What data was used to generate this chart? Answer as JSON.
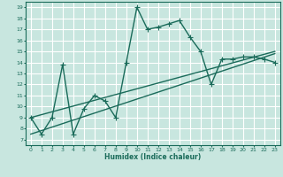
{
  "xlabel": "Humidex (Indice chaleur)",
  "bg_color": "#c8e6df",
  "grid_color": "#ffffff",
  "line_color": "#1a6b5a",
  "xlim": [
    -0.5,
    23.5
  ],
  "ylim": [
    6.5,
    19.5
  ],
  "xticks": [
    0,
    1,
    2,
    3,
    4,
    5,
    6,
    7,
    8,
    9,
    10,
    11,
    12,
    13,
    14,
    15,
    16,
    17,
    18,
    19,
    20,
    21,
    22,
    23
  ],
  "yticks": [
    7,
    8,
    9,
    10,
    11,
    12,
    13,
    14,
    15,
    16,
    17,
    18,
    19
  ],
  "curve1_x": [
    0,
    1,
    2,
    3,
    4,
    5,
    6,
    7,
    8,
    9,
    10,
    11,
    12,
    13,
    14,
    15,
    16,
    17,
    18,
    19,
    20,
    21,
    22,
    23
  ],
  "curve1_y": [
    9.0,
    7.5,
    9.0,
    13.8,
    7.5,
    9.8,
    11.0,
    10.5,
    9.0,
    14.0,
    19.0,
    17.0,
    17.2,
    17.5,
    17.8,
    16.3,
    15.0,
    12.0,
    14.3,
    14.3,
    14.5,
    14.5,
    14.3,
    14.0
  ],
  "line2_x": [
    0,
    23
  ],
  "line2_y": [
    7.5,
    14.8
  ],
  "line3_x": [
    0,
    23
  ],
  "line3_y": [
    9.0,
    15.0
  ],
  "marker": "+",
  "markersize": 4,
  "linewidth": 1.0
}
